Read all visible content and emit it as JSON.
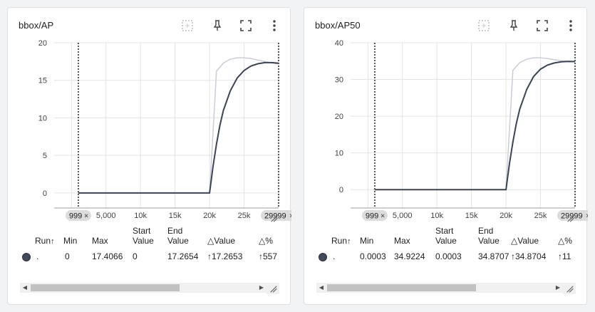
{
  "cards": [
    {
      "title": "bbox/AP",
      "icons": [
        "fit-domain-icon",
        "pin-icon",
        "fullscreen-icon",
        "more-vert-icon"
      ],
      "chart_data": {
        "type": "line",
        "xlim": [
          -2500,
          30000
        ],
        "ylim": [
          -2,
          20
        ],
        "y_ticks": [
          0,
          5,
          10,
          15,
          20
        ],
        "y_tick_labels": [
          "0",
          "5",
          "10",
          "15",
          "20"
        ],
        "x_ticks": [
          0,
          5000,
          10000,
          15000,
          20000,
          25000,
          30000
        ],
        "x_tick_labels": [
          "0",
          "5,000",
          "10k",
          "15k",
          "20k",
          "25k",
          "30k"
        ],
        "markers": [
          999,
          29999
        ],
        "marker_labels": [
          "999",
          "29999"
        ],
        "series": [
          {
            "role": "raw",
            "color": "#c9cdd8",
            "x": [
              999,
              2000,
              5000,
              10000,
              15000,
              19999,
              21000,
              22000,
              23000,
              24000,
              25000,
              26000,
              27000,
              28000,
              29000,
              29999
            ],
            "y": [
              0,
              0,
              0,
              0,
              0,
              0,
              16.2,
              17.3,
              17.8,
              18.0,
              18.0,
              17.9,
              17.7,
              17.5,
              17.3,
              17.2
            ]
          },
          {
            "role": "smoothed",
            "color": "#3b4356",
            "x": [
              999,
              2000,
              5000,
              10000,
              15000,
              19999,
              20500,
              21000,
              21500,
              22000,
              23000,
              24000,
              25000,
              26000,
              27000,
              28000,
              29000,
              29999
            ],
            "y": [
              0,
              0,
              0,
              0,
              0,
              0,
              3.5,
              6.5,
              9.0,
              11.0,
              13.6,
              15.3,
              16.3,
              16.9,
              17.2,
              17.35,
              17.35,
              17.27
            ]
          }
        ]
      },
      "table": {
        "headers": {
          "run": "Run",
          "min": "Min",
          "max": "Max",
          "start1": "Start",
          "start2": "Value",
          "end1": "End",
          "end2": "Value",
          "delta_value": "Value",
          "delta_pct": "%"
        },
        "sort_arrow": "↑",
        "delta_symbol": "△",
        "row": {
          "run": ".",
          "min": "0",
          "max": "17.4066",
          "start": "0",
          "end": "17.2654",
          "delta_value": "17.2653",
          "delta_pct": "557",
          "arrow": "↑"
        }
      },
      "scroll": {
        "thumb_fraction": 0.66
      }
    },
    {
      "title": "bbox/AP50",
      "icons": [
        "fit-domain-icon",
        "pin-icon",
        "fullscreen-icon",
        "more-vert-icon"
      ],
      "chart_data": {
        "type": "line",
        "xlim": [
          -2500,
          30000
        ],
        "ylim": [
          -5,
          40
        ],
        "y_ticks": [
          0,
          10,
          20,
          30,
          40
        ],
        "y_tick_labels": [
          "0",
          "10",
          "20",
          "30",
          "40"
        ],
        "x_ticks": [
          0,
          5000,
          10000,
          15000,
          20000,
          25000,
          30000
        ],
        "x_tick_labels": [
          "0",
          "5,000",
          "10k",
          "15k",
          "20k",
          "25k",
          "30k"
        ],
        "markers": [
          999,
          29999
        ],
        "marker_labels": [
          "999",
          "29999"
        ],
        "series": [
          {
            "role": "raw",
            "color": "#c9cdd8",
            "x": [
              999,
              2000,
              5000,
              10000,
              15000,
              19999,
              21000,
              22000,
              23000,
              24000,
              25000,
              26000,
              27000,
              28000,
              29000,
              29999
            ],
            "y": [
              0,
              0,
              0,
              0,
              0,
              0,
              32.5,
              34.6,
              35.5,
              35.9,
              35.9,
              35.7,
              35.4,
              35.1,
              34.9,
              34.8
            ]
          },
          {
            "role": "smoothed",
            "color": "#3b4356",
            "x": [
              999,
              2000,
              5000,
              10000,
              15000,
              19999,
              20500,
              21000,
              21500,
              22000,
              23000,
              24000,
              25000,
              26000,
              27000,
              28000,
              29000,
              29999
            ],
            "y": [
              0,
              0,
              0,
              0,
              0,
              0,
              7,
              13,
              18,
              22,
              27.3,
              30.8,
              32.8,
              33.9,
              34.5,
              34.8,
              34.9,
              34.87
            ]
          }
        ]
      },
      "table": {
        "headers": {
          "run": "Run",
          "min": "Min",
          "max": "Max",
          "start1": "Start",
          "start2": "Value",
          "end1": "End",
          "end2": "Value",
          "delta_value": "Value",
          "delta_pct": "%"
        },
        "sort_arrow": "↑",
        "delta_symbol": "△",
        "row": {
          "run": ".",
          "min": "0.0003",
          "max": "34.9224",
          "start": "0.0003",
          "end": "34.8707",
          "delta_value": "34.8704",
          "delta_pct": "11",
          "arrow": "↑"
        }
      },
      "scroll": {
        "thumb_fraction": 0.66
      }
    }
  ]
}
